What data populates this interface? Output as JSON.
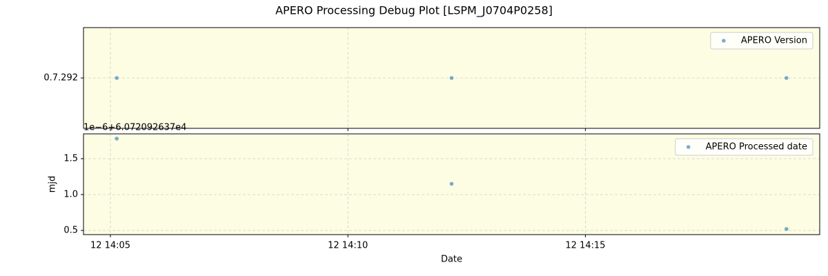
{
  "title": "APERO Processing Debug Plot [LSPM_J0704P0258]",
  "chart_data": [
    {
      "type": "scatter",
      "x": [
        "12 14:05:08",
        "12 14:12:11",
        "12 14:19:14"
      ],
      "xlim": [
        "12 14:04:26",
        "12 14:19:56"
      ],
      "xticks": [
        "12 14:05",
        "12 14:10",
        "12 14:15"
      ],
      "ycategories": [
        "0.7.292"
      ],
      "series": [
        {
          "name": "APERO Version",
          "color": "#1f77b4",
          "values": [
            "0.7.292",
            "0.7.292",
            "0.7.292"
          ]
        }
      ],
      "grid": true,
      "legend": "upper right",
      "background": "#fdfde4"
    },
    {
      "type": "scatter",
      "x": [
        "12 14:05:08",
        "12 14:12:11",
        "12 14:19:14"
      ],
      "xlim": [
        "12 14:04:26",
        "12 14:19:56"
      ],
      "xticks": [
        "12 14:05",
        "12 14:10",
        "12 14:15"
      ],
      "xlabel": "Date",
      "ylabel": "mjd",
      "offset_text": "1e−6+6.072092637e4",
      "ylim": [
        0.442,
        1.846
      ],
      "yticks": [
        0.5,
        {
          "value": 1.0,
          "label": "1.0"
        },
        1.5
      ],
      "series": [
        {
          "name": "APERO Processed date",
          "color": "#1f77b4",
          "values": [
            1.78,
            1.15,
            0.52
          ]
        }
      ],
      "grid": true,
      "legend": "upper right",
      "background": "#fdfde4"
    }
  ]
}
